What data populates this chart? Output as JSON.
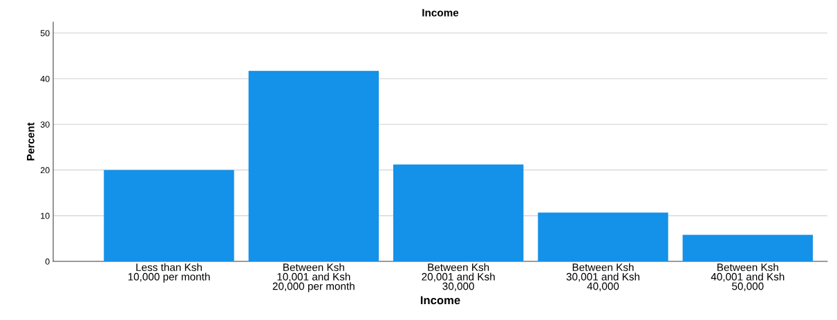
{
  "chart_data": {
    "type": "bar",
    "title": "Income",
    "xlabel": "Income",
    "ylabel": "Percent",
    "categories": [
      "Less than Ksh\n10,000 per month",
      "Between Ksh\n10,001 and Ksh\n20,000 per month",
      "Between Ksh\n20,001 and Ksh\n30,000",
      "Between Ksh\n30,001 and Ksh\n40,000",
      "Between Ksh\n40,001 and Ksh\n50,000"
    ],
    "values": [
      20.0,
      41.7,
      21.2,
      10.7,
      5.8
    ],
    "color": "#1491e8",
    "ylim": [
      0,
      52.4
    ],
    "yticks": [
      0,
      10,
      20,
      30,
      40,
      50
    ],
    "grid": "y"
  }
}
